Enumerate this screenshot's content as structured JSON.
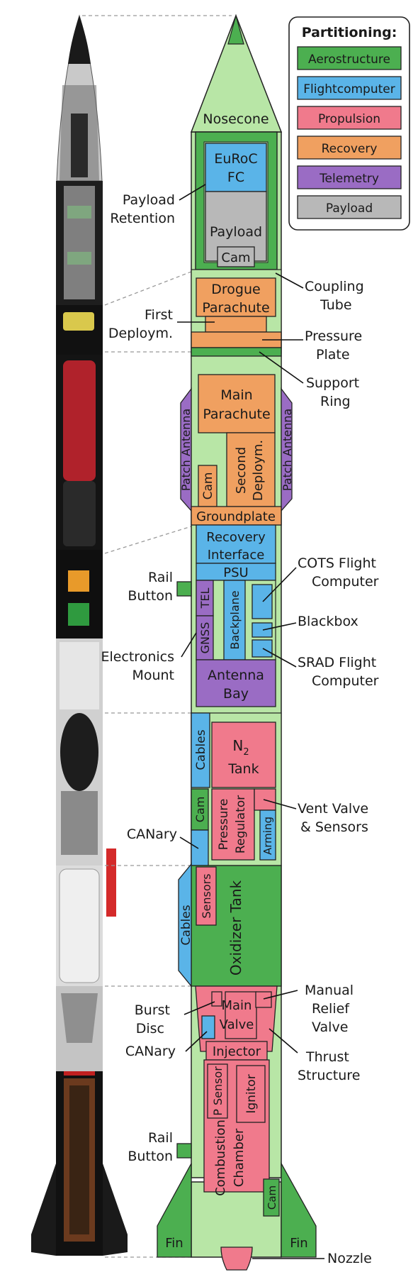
{
  "colors": {
    "aerostructure": "#4caf50",
    "aero_light": "#b8e6a6",
    "flightcomputer": "#5ab4e8",
    "propulsion": "#f07a8c",
    "recovery": "#f0a060",
    "telemetry": "#9a6cc4",
    "payload": "#b8b8b8",
    "rocket_dark": "#141414",
    "rocket_metal": "#c8c8c8"
  },
  "legend": {
    "title": "Partitioning:",
    "items": [
      {
        "label": "Aerostructure",
        "color": "#4caf50"
      },
      {
        "label": "Flightcomputer",
        "color": "#5ab4e8"
      },
      {
        "label": "Propulsion",
        "color": "#f07a8c"
      },
      {
        "label": "Recovery",
        "color": "#f0a060"
      },
      {
        "label": "Telemetry",
        "color": "#9a6cc4"
      },
      {
        "label": "Payload",
        "color": "#b8b8b8"
      }
    ]
  },
  "blocks": {
    "nosecone": "Nosecone",
    "euroc_fc_1": "EuRoC",
    "euroc_fc_2": "FC",
    "payload": "Payload",
    "cam_top": "Cam",
    "drogue_1": "Drogue",
    "drogue_2": "Parachute",
    "main_1": "Main",
    "main_2": "Parachute",
    "cam_mid": "Cam",
    "second_1": "Second",
    "second_2": "Deploym.",
    "patch_left": "Patch Antenna",
    "patch_right": "Patch Antenna",
    "groundplate": "Groundplate",
    "recovery_if_1": "Recovery",
    "recovery_if_2": "Interface",
    "psu": "PSU",
    "tel": "TEL",
    "gnss": "GNSS",
    "backplane": "Backplane",
    "antenna_bay_1": "Antenna",
    "antenna_bay_2": "Bay",
    "cables_top": "Cables",
    "n2_1": "N",
    "n2_sub": "2",
    "n2_2": "Tank",
    "cam_prop": "Cam",
    "pressure_reg_1": "Pressure",
    "pressure_reg_2": "Regulator",
    "arming": "Arming",
    "sensors": "Sensors",
    "cables_bottom": "Cables",
    "ox_tank": "Oxidizer Tank",
    "main_valve_1": "Main",
    "main_valve_2": "Valve",
    "injector": "Injector",
    "p_sensor": "P Sensor",
    "ignitor": "Ignitor",
    "combustion_1": "Combustion",
    "combustion_2": "Chamber",
    "cam_bottom": "Cam",
    "fin_left": "Fin",
    "fin_right": "Fin"
  },
  "callouts": {
    "payload_retention_1": "Payload",
    "payload_retention_2": "Retention",
    "coupling_tube_1": "Coupling",
    "coupling_tube_2": "Tube",
    "first_deploy_1": "First",
    "first_deploy_2": "Deploym.",
    "pressure_plate_1": "Pressure",
    "pressure_plate_2": "Plate",
    "support_ring_1": "Support",
    "support_ring_2": "Ring",
    "rail_button_top_1": "Rail",
    "rail_button_top_2": "Button",
    "cots_fc_1": "COTS Flight",
    "cots_fc_2": "Computer",
    "blackbox": "Blackbox",
    "electronics_mount_1": "Electronics",
    "electronics_mount_2": "Mount",
    "srad_fc_1": "SRAD Flight",
    "srad_fc_2": "Computer",
    "vent_valve_1": "Vent Valve",
    "vent_valve_2": "& Sensors",
    "canary_top": "CANary",
    "burst_disc_1": "Burst",
    "burst_disc_2": "Disc",
    "manual_relief_1": "Manual",
    "manual_relief_2": "Relief",
    "manual_relief_3": "Valve",
    "canary_bottom": "CANary",
    "thrust_structure_1": "Thrust",
    "thrust_structure_2": "Structure",
    "rail_button_bottom_1": "Rail",
    "rail_button_bottom_2": "Button",
    "nozzle": "Nozzle"
  }
}
